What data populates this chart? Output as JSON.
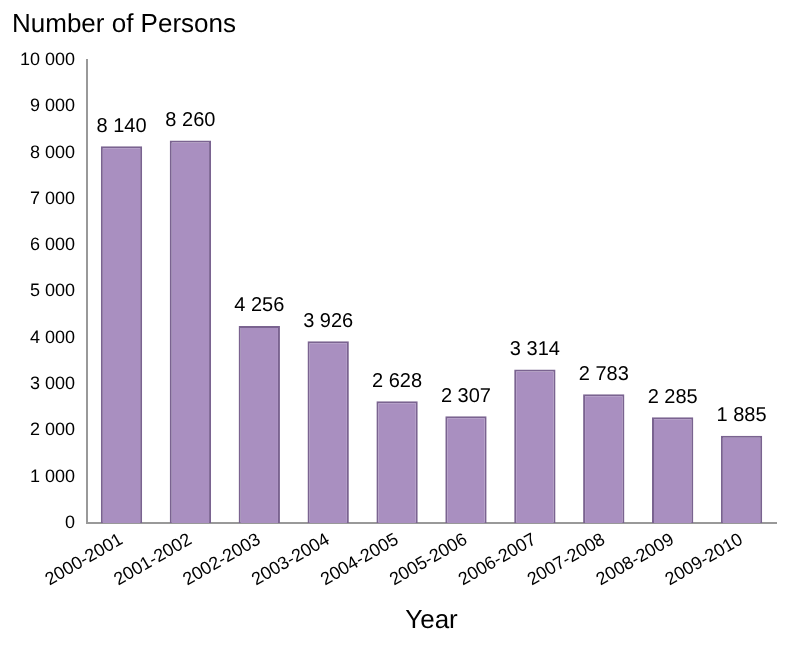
{
  "chart_data": {
    "type": "bar",
    "xlabel": "Year",
    "ylabel": "Number of Persons",
    "categories": [
      "2000-2001",
      "2001-2002",
      "2002-2003",
      "2003-2004",
      "2004-2005",
      "2005-2006",
      "2006-2007",
      "2007-2008",
      "2008-2009",
      "2009-2010"
    ],
    "values": [
      8140,
      8260,
      4256,
      3926,
      2628,
      2307,
      3314,
      2783,
      2285,
      1885
    ],
    "value_labels": [
      "8 140",
      "8 260",
      "4 256",
      "3 926",
      "2 628",
      "2 307",
      "3 314",
      "2 783",
      "2 285",
      "1 885"
    ],
    "color": "#a98fc0",
    "ylim": [
      0,
      10000
    ],
    "yticks": [
      0,
      {
        "value": 1000,
        "label": "1 000"
      },
      {
        "value": 2000,
        "label": "2 000"
      },
      {
        "value": 3000,
        "label": "3 000"
      },
      {
        "value": 4000,
        "label": "4 000"
      },
      {
        "value": 5000,
        "label": "5 000"
      },
      {
        "value": 6000,
        "label": "6 000"
      },
      {
        "value": 7000,
        "label": "7 000"
      },
      {
        "value": 8000,
        "label": "8 000"
      },
      {
        "value": 9000,
        "label": "9 000"
      },
      {
        "value": 10000,
        "label": "10 000"
      }
    ],
    "grid": false,
    "legend": false
  }
}
